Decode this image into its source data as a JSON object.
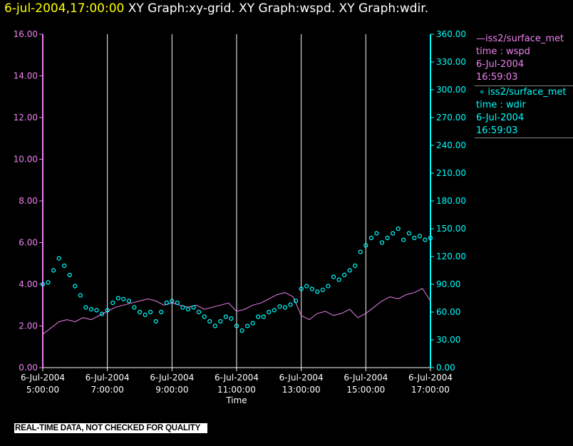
{
  "header": {
    "timestamp": "6-jul-2004,17:00:00",
    "graphs": "XY Graph:xy-grid.  XY Graph:wspd.  XY Graph:wdir."
  },
  "banner": "REAL-TIME DATA, NOT CHECKED FOR QUALITY",
  "legend": [
    {
      "label": "iss2/surface_met",
      "var": "time : wspd",
      "date": "6-Jul-2004",
      "time": "16:59:03",
      "color": "#ee82ee",
      "marker": "line"
    },
    {
      "label": "iss2/surface_met",
      "var": "time : wdir",
      "date": "6-Jul-2004",
      "time": "16:59:03",
      "color": "#00ffff",
      "marker": "circle"
    }
  ],
  "chart_data": {
    "type": "line",
    "xlabel": "Time",
    "x_ticks": [
      {
        "date": "6-Jul-2004",
        "time": "5:00:00"
      },
      {
        "date": "6-Jul-2004",
        "time": "7:00:00"
      },
      {
        "date": "6-Jul-2004",
        "time": "9:00:00"
      },
      {
        "date": "6-Jul-2004",
        "time": "11:00:00"
      },
      {
        "date": "6-Jul-2004",
        "time": "13:00:00"
      },
      {
        "date": "6-Jul-2004",
        "time": "15:00:00"
      },
      {
        "date": "6-Jul-2004",
        "time": "17:00:00"
      }
    ],
    "xlim": [
      "05:00",
      "17:00"
    ],
    "grid": "vertical",
    "y_left": {
      "lim": [
        0,
        16
      ],
      "ticks": [
        "0.00",
        "2.00",
        "4.00",
        "6.00",
        "8.00",
        "10.00",
        "12.00",
        "14.00",
        "16.00"
      ],
      "color": "#ee82ee"
    },
    "y_right": {
      "lim": [
        0,
        360
      ],
      "ticks": [
        "0.00",
        "30.00",
        "60.00",
        "90.00",
        "120.00",
        "150.00",
        "180.00",
        "210.00",
        "240.00",
        "270.00",
        "300.00",
        "330.00",
        "360.00"
      ],
      "color": "#00ffff"
    },
    "series": [
      {
        "axis": "left",
        "style": "line",
        "color": "#ee82ee",
        "points": [
          [
            "05:00",
            1.6
          ],
          [
            "05:15",
            1.9
          ],
          [
            "05:30",
            2.2
          ],
          [
            "05:45",
            2.3
          ],
          [
            "06:00",
            2.2
          ],
          [
            "06:15",
            2.4
          ],
          [
            "06:30",
            2.3
          ],
          [
            "06:45",
            2.5
          ],
          [
            "07:00",
            2.7
          ],
          [
            "07:15",
            2.9
          ],
          [
            "07:30",
            3.0
          ],
          [
            "07:45",
            3.1
          ],
          [
            "08:00",
            3.2
          ],
          [
            "08:15",
            3.3
          ],
          [
            "08:30",
            3.2
          ],
          [
            "08:45",
            3.0
          ],
          [
            "09:00",
            3.1
          ],
          [
            "09:15",
            3.0
          ],
          [
            "09:30",
            2.9
          ],
          [
            "09:45",
            3.0
          ],
          [
            "10:00",
            2.8
          ],
          [
            "10:15",
            2.9
          ],
          [
            "10:30",
            3.0
          ],
          [
            "10:45",
            3.1
          ],
          [
            "11:00",
            2.7
          ],
          [
            "11:15",
            2.8
          ],
          [
            "11:30",
            3.0
          ],
          [
            "11:45",
            3.1
          ],
          [
            "12:00",
            3.3
          ],
          [
            "12:15",
            3.5
          ],
          [
            "12:30",
            3.6
          ],
          [
            "12:45",
            3.4
          ],
          [
            "13:00",
            2.5
          ],
          [
            "13:15",
            2.3
          ],
          [
            "13:30",
            2.6
          ],
          [
            "13:45",
            2.7
          ],
          [
            "14:00",
            2.5
          ],
          [
            "14:15",
            2.6
          ],
          [
            "14:30",
            2.8
          ],
          [
            "14:45",
            2.4
          ],
          [
            "15:00",
            2.6
          ],
          [
            "15:15",
            2.9
          ],
          [
            "15:30",
            3.2
          ],
          [
            "15:45",
            3.4
          ],
          [
            "16:00",
            3.3
          ],
          [
            "16:15",
            3.5
          ],
          [
            "16:30",
            3.6
          ],
          [
            "16:45",
            3.8
          ],
          [
            "17:00",
            3.2
          ]
        ]
      },
      {
        "axis": "right",
        "style": "scatter",
        "color": "#00ffff",
        "points": [
          [
            "05:00",
            90
          ],
          [
            "05:10",
            92
          ],
          [
            "05:20",
            105
          ],
          [
            "05:30",
            118
          ],
          [
            "05:40",
            110
          ],
          [
            "05:50",
            100
          ],
          [
            "06:00",
            88
          ],
          [
            "06:10",
            78
          ],
          [
            "06:20",
            65
          ],
          [
            "06:30",
            63
          ],
          [
            "06:40",
            62
          ],
          [
            "06:50",
            58
          ],
          [
            "07:00",
            62
          ],
          [
            "07:10",
            70
          ],
          [
            "07:20",
            75
          ],
          [
            "07:30",
            74
          ],
          [
            "07:40",
            72
          ],
          [
            "07:50",
            65
          ],
          [
            "08:00",
            60
          ],
          [
            "08:10",
            57
          ],
          [
            "08:20",
            60
          ],
          [
            "08:30",
            50
          ],
          [
            "08:40",
            60
          ],
          [
            "08:50",
            70
          ],
          [
            "09:00",
            72
          ],
          [
            "09:10",
            70
          ],
          [
            "09:20",
            65
          ],
          [
            "09:30",
            63
          ],
          [
            "09:40",
            65
          ],
          [
            "09:50",
            60
          ],
          [
            "10:00",
            55
          ],
          [
            "10:10",
            50
          ],
          [
            "10:20",
            45
          ],
          [
            "10:30",
            50
          ],
          [
            "10:40",
            55
          ],
          [
            "10:50",
            53
          ],
          [
            "11:00",
            45
          ],
          [
            "11:10",
            40
          ],
          [
            "11:20",
            45
          ],
          [
            "11:30",
            48
          ],
          [
            "11:40",
            55
          ],
          [
            "11:50",
            55
          ],
          [
            "12:00",
            60
          ],
          [
            "12:10",
            62
          ],
          [
            "12:20",
            66
          ],
          [
            "12:30",
            65
          ],
          [
            "12:40",
            68
          ],
          [
            "12:50",
            72
          ],
          [
            "13:00",
            85
          ],
          [
            "13:10",
            88
          ],
          [
            "13:20",
            85
          ],
          [
            "13:30",
            82
          ],
          [
            "13:40",
            84
          ],
          [
            "13:50",
            88
          ],
          [
            "14:00",
            98
          ],
          [
            "14:10",
            95
          ],
          [
            "14:20",
            100
          ],
          [
            "14:30",
            105
          ],
          [
            "14:40",
            110
          ],
          [
            "14:50",
            125
          ],
          [
            "15:00",
            132
          ],
          [
            "15:10",
            140
          ],
          [
            "15:20",
            145
          ],
          [
            "15:30",
            135
          ],
          [
            "15:40",
            140
          ],
          [
            "15:50",
            145
          ],
          [
            "16:00",
            150
          ],
          [
            "16:10",
            138
          ],
          [
            "16:20",
            145
          ],
          [
            "16:30",
            140
          ],
          [
            "16:40",
            142
          ],
          [
            "16:50",
            138
          ],
          [
            "17:00",
            140
          ]
        ]
      }
    ]
  }
}
